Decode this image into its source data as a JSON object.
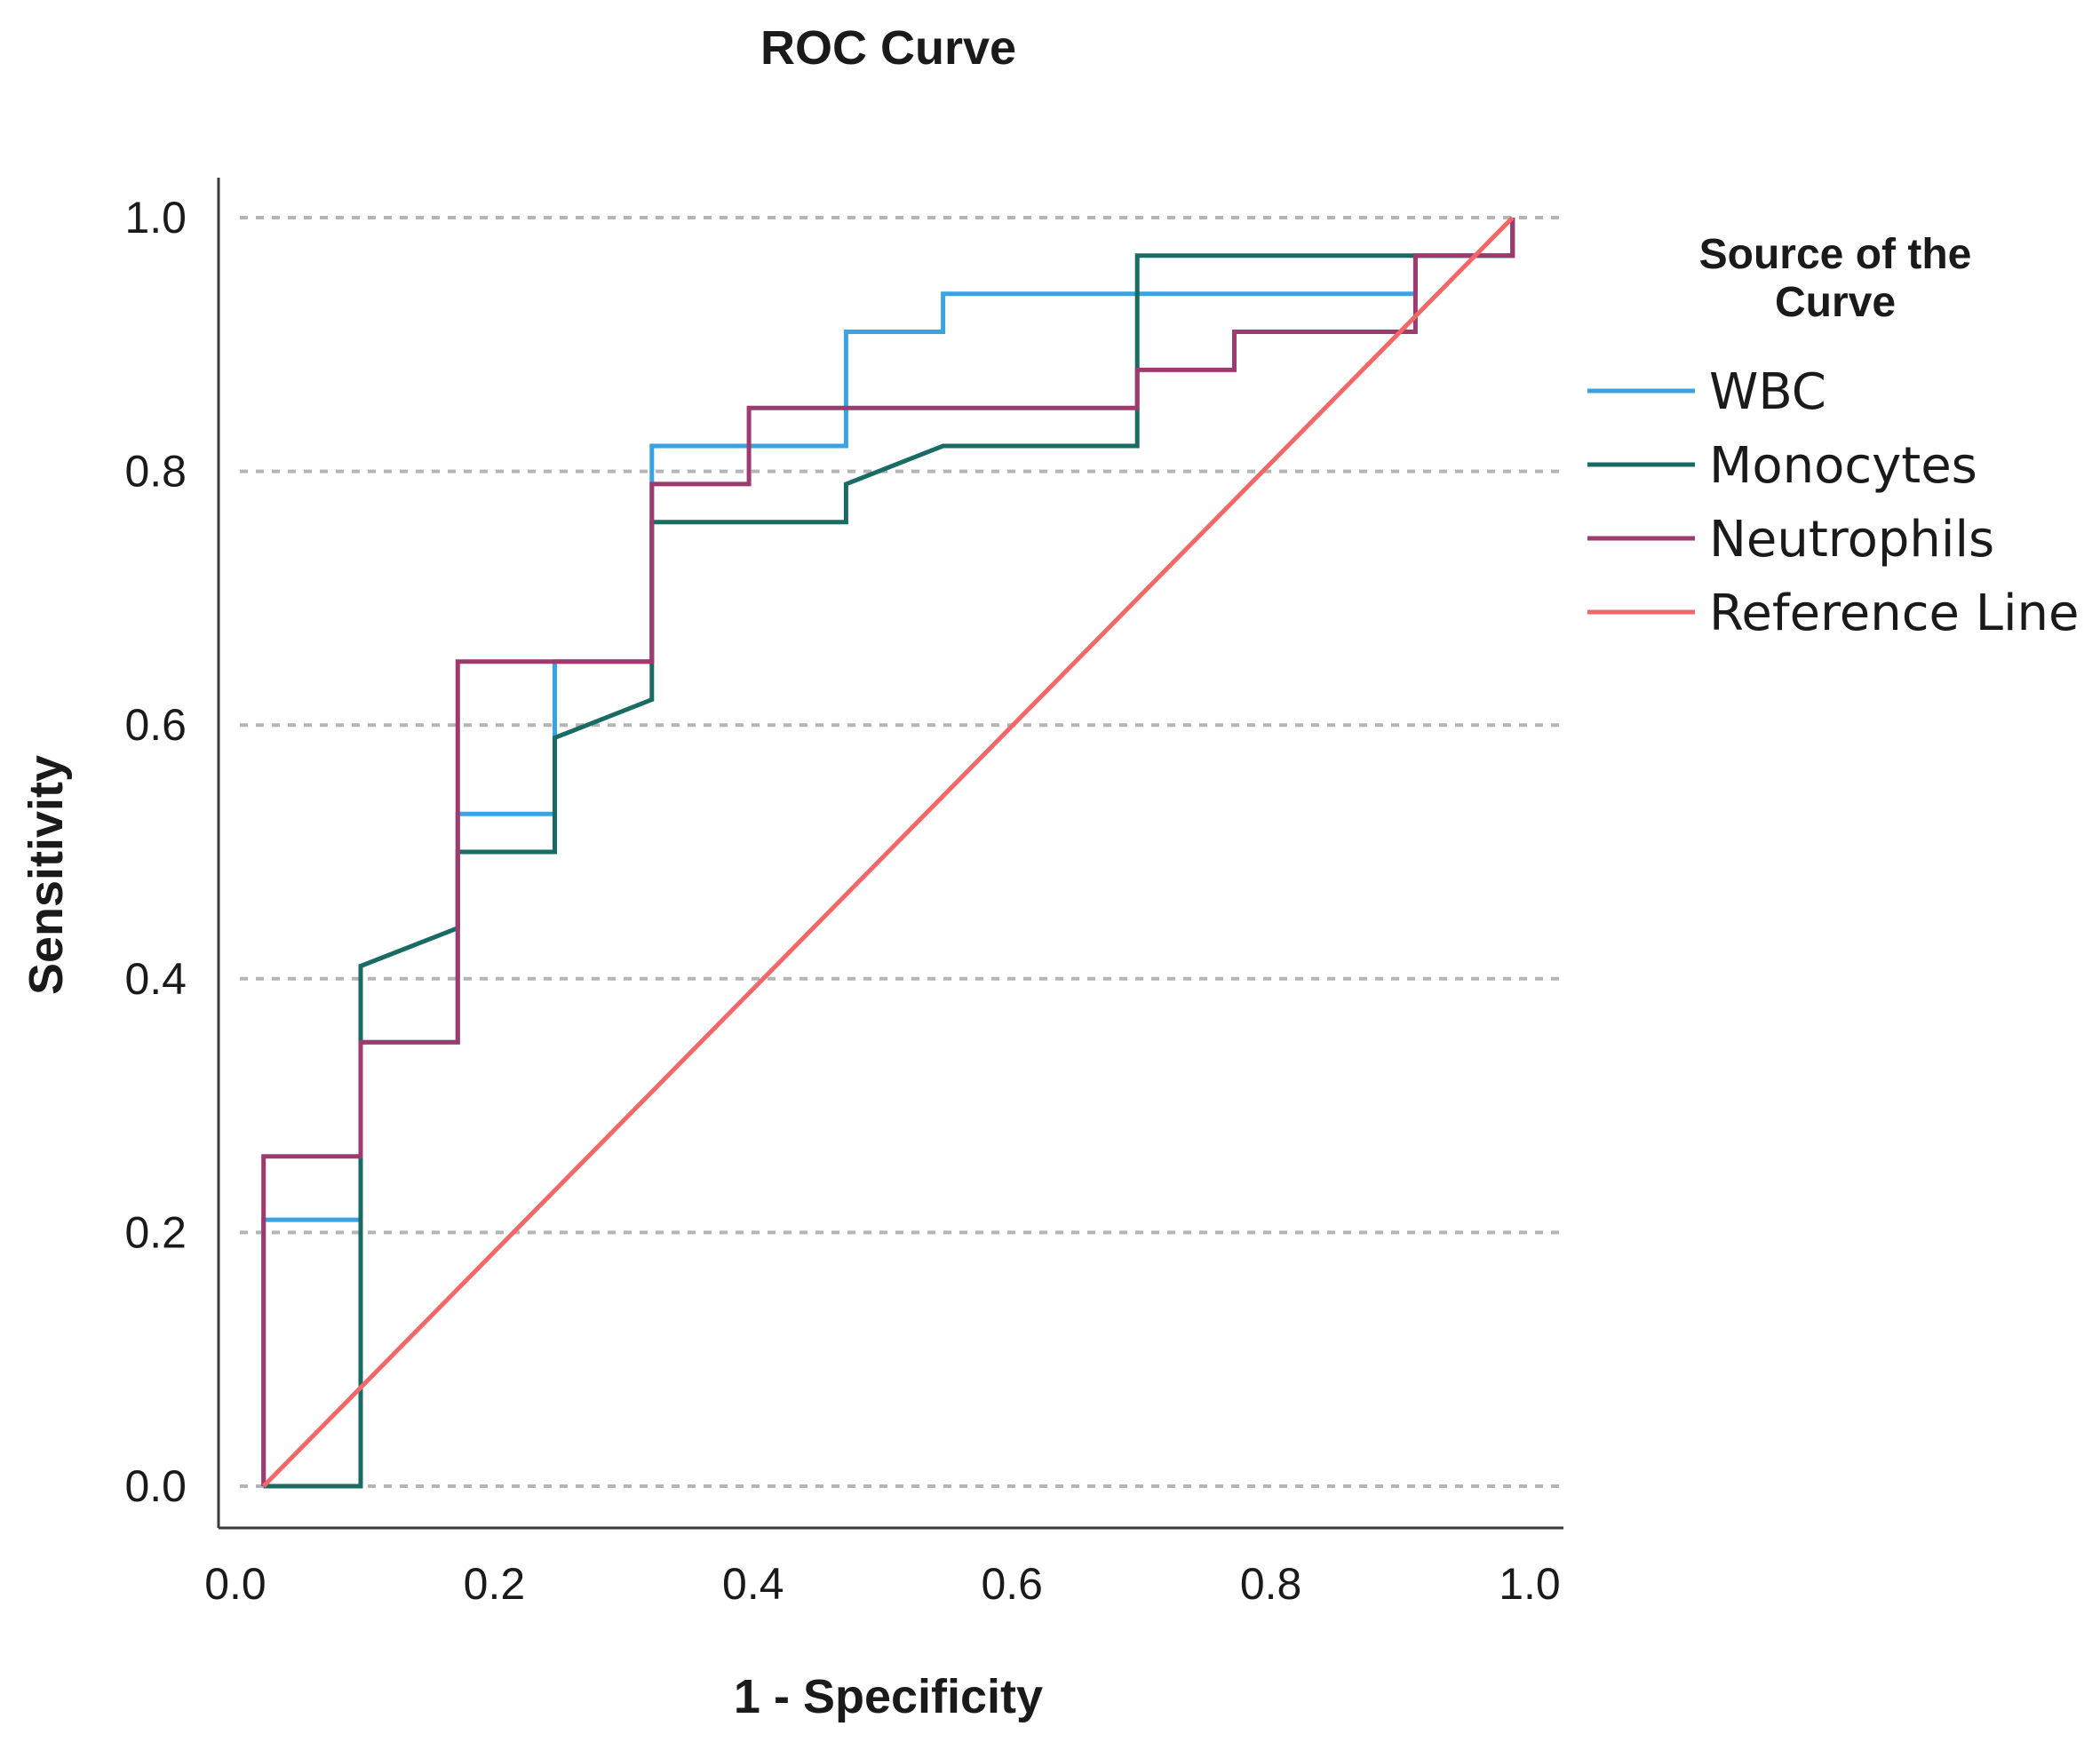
{
  "chart_data": {
    "type": "line",
    "title": "ROC Curve",
    "xlabel": "1 - Specificity",
    "ylabel": "Sensitivity",
    "xlim": [
      0.0,
      1.0
    ],
    "ylim": [
      0.0,
      1.0
    ],
    "x_ticks": [
      "0.0",
      "0.2",
      "0.4",
      "0.6",
      "0.8",
      "1.0"
    ],
    "y_ticks": [
      "0.0",
      "0.2",
      "0.4",
      "0.6",
      "0.8",
      "1.0"
    ],
    "grid": "horizontal dashed",
    "legend": {
      "title_lines": [
        "Source of the",
        "Curve"
      ],
      "position": "right"
    },
    "series": [
      {
        "name": "WBC",
        "color": "#3aa3e3",
        "x": [
          0.03,
          0.03,
          0.105,
          0.105,
          0.18,
          0.18,
          0.255,
          0.255,
          0.33,
          0.33,
          0.48,
          0.48,
          0.555,
          0.555,
          0.92,
          0.92,
          0.995,
          0.995
        ],
        "y": [
          0.0,
          0.21,
          0.21,
          0.35,
          0.35,
          0.53,
          0.53,
          0.65,
          0.65,
          0.82,
          0.82,
          0.91,
          0.91,
          0.94,
          0.94,
          0.97,
          0.97,
          1.0
        ]
      },
      {
        "name": "Monocytes",
        "color": "#1a6b63",
        "x": [
          0.03,
          0.105,
          0.105,
          0.18,
          0.18,
          0.255,
          0.255,
          0.33,
          0.33,
          0.48,
          0.48,
          0.555,
          0.705,
          0.705,
          0.995,
          0.995
        ],
        "y": [
          0.0,
          0.0,
          0.41,
          0.44,
          0.5,
          0.5,
          0.59,
          0.62,
          0.76,
          0.76,
          0.79,
          0.82,
          0.82,
          0.97,
          0.97,
          1.0
        ]
      },
      {
        "name": "Neutrophils",
        "color": "#9e3a6e",
        "x": [
          0.03,
          0.03,
          0.105,
          0.105,
          0.18,
          0.18,
          0.33,
          0.33,
          0.405,
          0.405,
          0.705,
          0.705,
          0.78,
          0.78,
          0.92,
          0.92,
          0.995,
          0.995
        ],
        "y": [
          0.0,
          0.26,
          0.26,
          0.35,
          0.35,
          0.65,
          0.65,
          0.79,
          0.79,
          0.85,
          0.85,
          0.88,
          0.88,
          0.91,
          0.91,
          0.97,
          0.97,
          1.0
        ]
      },
      {
        "name": "Reference Line",
        "color": "#f26868",
        "x": [
          0.03,
          0.995
        ],
        "y": [
          0.0,
          1.0
        ]
      }
    ]
  }
}
